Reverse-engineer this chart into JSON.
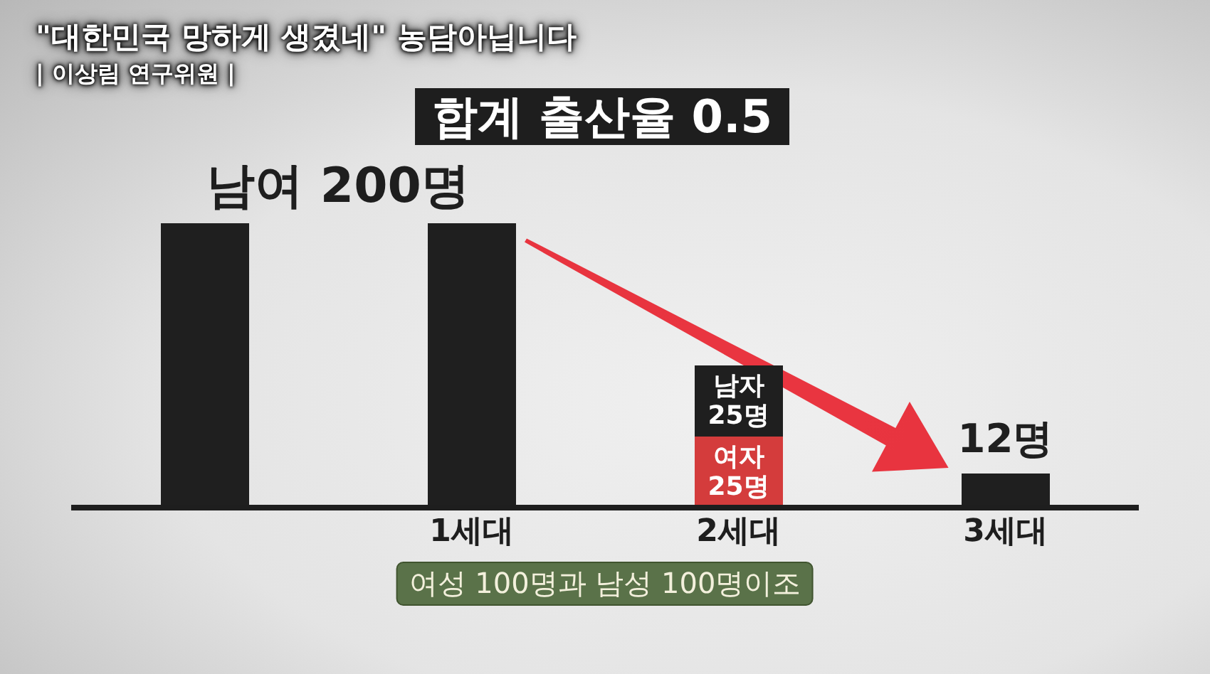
{
  "chart_data": {
    "type": "bar",
    "title": "합계 출산율 0.5",
    "categories": [
      null,
      "1세대",
      "2세대",
      "3세대"
    ],
    "stacked": true,
    "series": [
      {
        "color": "#d43c3c",
        "values": [
          null,
          null,
          25,
          null
        ],
        "value_labels": [
          null,
          null,
          "여자 25명",
          null
        ]
      },
      {
        "color": "#1f1f1f",
        "values": [
          100,
          100,
          25,
          12
        ],
        "value_labels": [
          null,
          null,
          "남자 25명",
          "12명"
        ]
      }
    ],
    "annotations": [
      "\"대한민국 망하게 생겼네\" 농담아닙니다",
      "| 이상림 연구위원 |",
      "남여 200명",
      "여성 100명과 남성 100명이조"
    ]
  }
}
